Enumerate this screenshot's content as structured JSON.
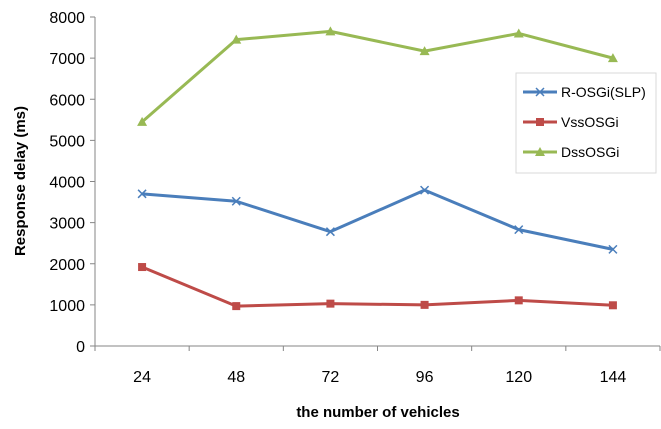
{
  "chart_data": {
    "type": "line",
    "xlabel": "the number of vehicles",
    "ylabel": "Response delay (ms)",
    "categories": [
      "24",
      "48",
      "72",
      "96",
      "120",
      "144"
    ],
    "ylim": [
      0,
      8000
    ],
    "yticks": [
      0,
      1000,
      2000,
      3000,
      4000,
      5000,
      6000,
      7000,
      8000
    ],
    "grid": false,
    "legend_position": "right",
    "series": [
      {
        "name": "R-OSGi(SLP)",
        "values": [
          3700,
          3520,
          2780,
          3790,
          2830,
          2350
        ],
        "color": "#4a7ebb",
        "marker": "x"
      },
      {
        "name": "VssOSGi",
        "values": [
          1920,
          970,
          1030,
          1000,
          1110,
          990
        ],
        "color": "#be4b48",
        "marker": "square"
      },
      {
        "name": "DssOSGi",
        "values": [
          5450,
          7450,
          7650,
          7170,
          7600,
          7000
        ],
        "color": "#98b954",
        "marker": "triangle"
      }
    ]
  }
}
